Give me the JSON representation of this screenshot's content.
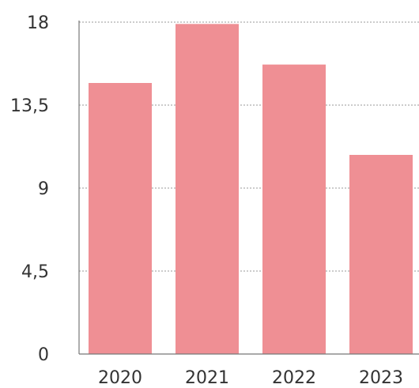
{
  "chart_data": {
    "type": "bar",
    "categories": [
      "2020",
      "2021",
      "2022",
      "2023"
    ],
    "values": [
      14.7,
      17.9,
      15.7,
      10.8
    ],
    "ylim": [
      0,
      18
    ],
    "yticks": [
      0,
      4.5,
      9,
      13.5,
      18
    ],
    "ytick_labels": [
      "0",
      "4,5",
      "9",
      "13,5",
      "18"
    ],
    "grid": true,
    "bar_color": "#ef8f94",
    "title": "",
    "xlabel": "",
    "ylabel": ""
  }
}
